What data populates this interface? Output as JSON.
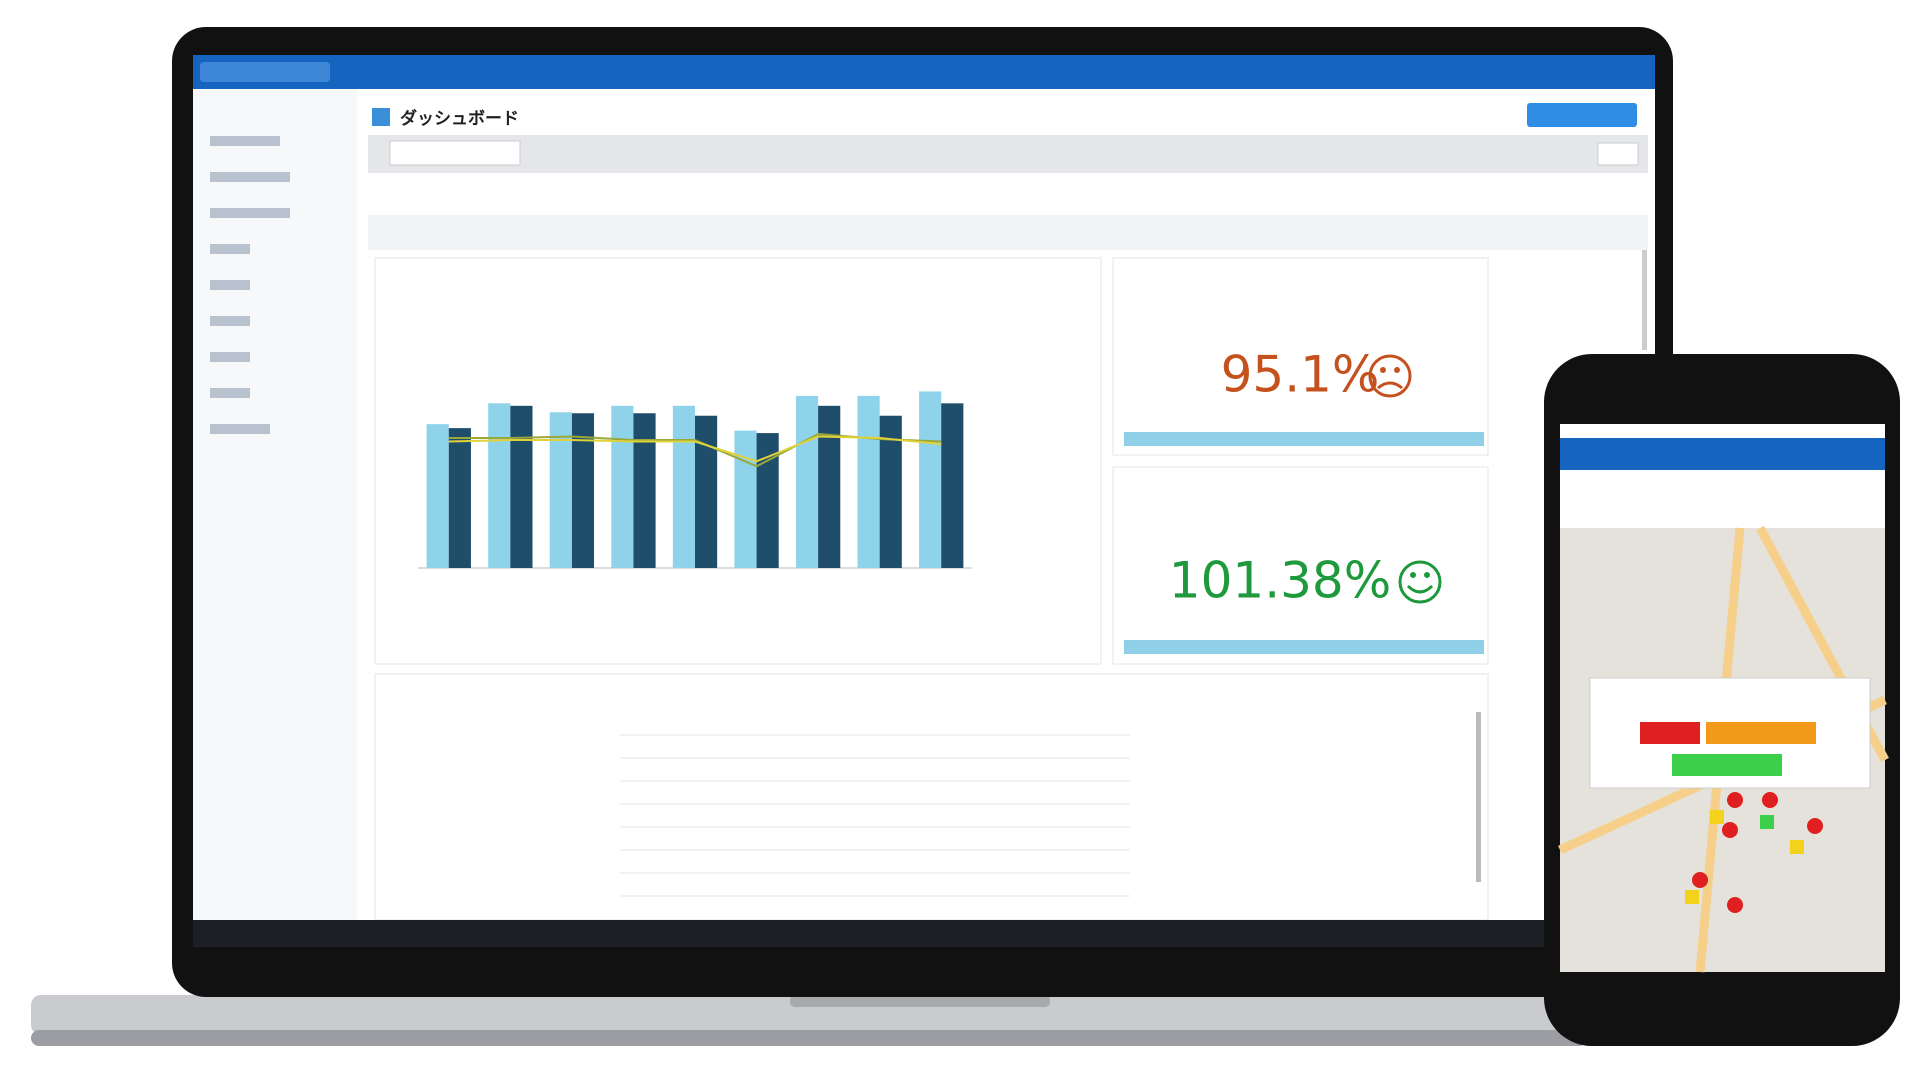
{
  "header": {
    "title": "ダッシュボード"
  },
  "kpis": [
    {
      "value_text": "95.1%",
      "color": "#c4511e"
    },
    {
      "value_text": "101.38%",
      "color": "#1e9a3c"
    }
  ],
  "chart_data": {
    "type": "bar",
    "ylim": [
      0,
      500
    ],
    "series": [
      {
        "type": "bar",
        "color": "#8fd3ea",
        "values": [
          290,
          332,
          314,
          327,
          327,
          277,
          347,
          347,
          356
        ]
      },
      {
        "type": "bar",
        "color": "#1f4e6b",
        "values": [
          282,
          327,
          312,
          312,
          307,
          272,
          327,
          307,
          332
        ]
      },
      {
        "type": "line",
        "color": "#9aa83a",
        "values": [
          262,
          262,
          265,
          258,
          258,
          205,
          270,
          260,
          255
        ]
      },
      {
        "type": "line",
        "color": "#e2d23a",
        "values": [
          255,
          258,
          258,
          255,
          255,
          215,
          265,
          262,
          250
        ]
      }
    ]
  }
}
